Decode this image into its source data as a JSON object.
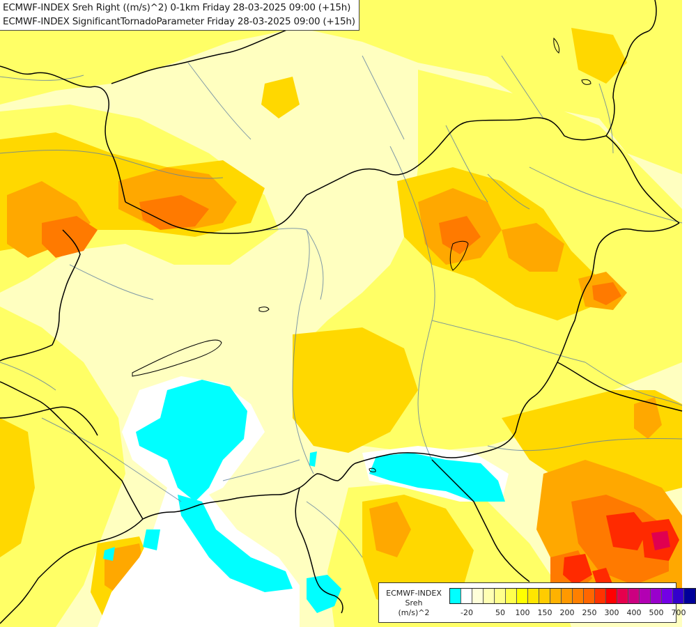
{
  "title": {
    "line1": "ECMWF-INDEX Sreh Right ((m/s)^2) 0-1km Friday 28-03-2025 09:00 (+15h)",
    "line2": "ECMWF-INDEX SignificantTornadoParameter Friday 28-03-2025 09:00 (+15h)"
  },
  "legend": {
    "title_line1": "ECMWF-INDEX",
    "title_line2": "Sreh",
    "title_line3": "(m/s)^2",
    "colors": [
      "#00ffff",
      "#ffffff",
      "#ffffd9",
      "#ffffb3",
      "#ffff8c",
      "#ffff4d",
      "#ffff00",
      "#ffe600",
      "#ffcc00",
      "#ffb200",
      "#ff9900",
      "#ff8000",
      "#ff6600",
      "#ff3300",
      "#ff0000",
      "#e6004d",
      "#cc0080",
      "#b300b3",
      "#9900cc",
      "#7300e6",
      "#3300cc",
      "#000099"
    ],
    "ticks": [
      "-20",
      "50",
      "100",
      "150",
      "200",
      "250",
      "300",
      "400",
      "500",
      "700"
    ]
  },
  "palette": {
    "cyan": "#00ffff",
    "white": "#ffffff",
    "pale_yellow": "#ffffc0",
    "light_yellow": "#ffff80",
    "yellow": "#ffff00",
    "gold": "#ffd700",
    "amber": "#ffbb00",
    "orange": "#ff9900",
    "dark_orange": "#ff7700",
    "red_orange": "#ff4400",
    "red": "#ff0000",
    "magenta": "#e00040",
    "border": "#000000",
    "river": "#5f7fa0"
  }
}
